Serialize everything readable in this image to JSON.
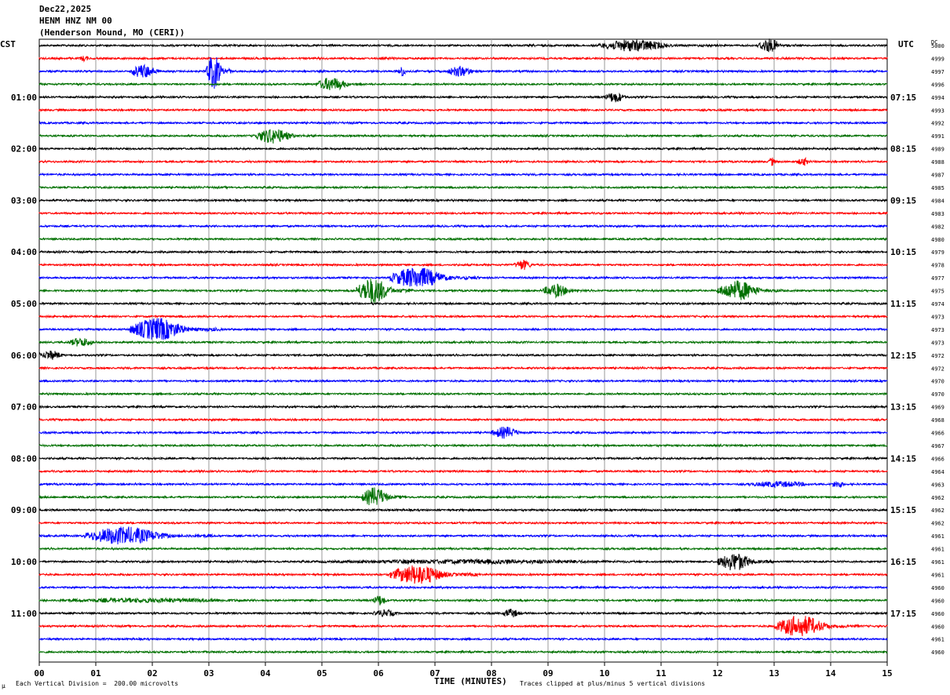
{
  "header": {
    "date": "Dec22,2025",
    "station": "HENM HNZ NM 00",
    "location": "(Henderson Mound, MO (CERI))"
  },
  "axes": {
    "left_label": "CST",
    "right_label": "UTC",
    "dc_label": "DC",
    "xlabel": "TIME (MINUTES)"
  },
  "footer": {
    "scale_note": "Each Vertical Division =  200.00 microvolts",
    "clip_note": "Traces clipped at plus/minus 5 vertical divisions",
    "corner_mark": "µ"
  },
  "chart_data": {
    "type": "line",
    "xlim": [
      0,
      15
    ],
    "x_tick_labels": [
      "00",
      "01",
      "02",
      "03",
      "04",
      "05",
      "06",
      "07",
      "08",
      "09",
      "10",
      "11",
      "12",
      "13",
      "14",
      "15"
    ],
    "trace_count": 48,
    "trace_colors": [
      "#000000",
      "#ff0000",
      "#0000ff",
      "#007000"
    ],
    "left_hour_labels": [
      "01:00",
      "02:00",
      "03:00",
      "04:00",
      "05:00",
      "06:00",
      "07:00",
      "08:00",
      "09:00",
      "10:00",
      "11:00"
    ],
    "right_hour_labels": [
      "07:15",
      "08:15",
      "09:15",
      "10:15",
      "11:15",
      "12:15",
      "13:15",
      "14:15",
      "15:15",
      "16:15",
      "17:15"
    ],
    "dc_values": [
      "5000",
      "4999",
      "4997",
      "4996",
      "4994",
      "4993",
      "4992",
      "4991",
      "4989",
      "4988",
      "4987",
      "4985",
      "4984",
      "4983",
      "4982",
      "4980",
      "4979",
      "4978",
      "4977",
      "4975",
      "4974",
      "4973",
      "4973",
      "4973",
      "4972",
      "4972",
      "4970",
      "4970",
      "4969",
      "4968",
      "4966",
      "4967",
      "4966",
      "4964",
      "4963",
      "4962",
      "4962",
      "4962",
      "4961",
      "4961",
      "4961",
      "4961",
      "4960",
      "4960",
      "4960",
      "4960",
      "4961",
      "4960"
    ],
    "events": [
      {
        "trace": 0,
        "start": 9.9,
        "end": 11.9,
        "amp": 8
      },
      {
        "trace": 0,
        "start": 12.7,
        "end": 13.4,
        "amp": 9
      },
      {
        "trace": 1,
        "start": 0.7,
        "end": 1.0,
        "amp": 4
      },
      {
        "trace": 2,
        "start": 1.6,
        "end": 2.4,
        "amp": 9
      },
      {
        "trace": 2,
        "start": 2.95,
        "end": 3.4,
        "amp": 23
      },
      {
        "trace": 2,
        "start": 6.35,
        "end": 6.6,
        "amp": 7
      },
      {
        "trace": 2,
        "start": 7.2,
        "end": 8.0,
        "amp": 7
      },
      {
        "trace": 3,
        "start": 4.9,
        "end": 5.8,
        "amp": 9
      },
      {
        "trace": 4,
        "start": 10.0,
        "end": 10.6,
        "amp": 7
      },
      {
        "trace": 7,
        "start": 3.8,
        "end": 4.9,
        "amp": 10
      },
      {
        "trace": 9,
        "start": 12.9,
        "end": 13.1,
        "amp": 6
      },
      {
        "trace": 9,
        "start": 13.4,
        "end": 13.8,
        "amp": 5
      },
      {
        "trace": 17,
        "start": 8.4,
        "end": 8.9,
        "amp": 7
      },
      {
        "trace": 18,
        "start": 6.2,
        "end": 7.8,
        "amp": 14
      },
      {
        "trace": 19,
        "start": 5.6,
        "end": 6.6,
        "amp": 17
      },
      {
        "trace": 19,
        "start": 8.9,
        "end": 9.7,
        "amp": 9
      },
      {
        "trace": 19,
        "start": 12.0,
        "end": 13.2,
        "amp": 13
      },
      {
        "trace": 22,
        "start": 1.6,
        "end": 3.2,
        "amp": 15
      },
      {
        "trace": 23,
        "start": 0.5,
        "end": 1.3,
        "amp": 6
      },
      {
        "trace": 24,
        "start": 0.0,
        "end": 0.7,
        "amp": 6
      },
      {
        "trace": 30,
        "start": 8.0,
        "end": 8.8,
        "amp": 8
      },
      {
        "trace": 34,
        "start": 12.5,
        "end": 14.5,
        "amp": 4
      },
      {
        "trace": 34,
        "start": 14.0,
        "end": 14.4,
        "amp": 5
      },
      {
        "trace": 35,
        "start": 5.7,
        "end": 6.5,
        "amp": 13
      },
      {
        "trace": 38,
        "start": 0.8,
        "end": 3.1,
        "amp": 12
      },
      {
        "trace": 40,
        "start": 12.0,
        "end": 13.0,
        "amp": 12
      },
      {
        "trace": 40,
        "start": 4.5,
        "end": 15.0,
        "amp": 3
      },
      {
        "trace": 41,
        "start": 6.2,
        "end": 7.8,
        "amp": 13
      },
      {
        "trace": 43,
        "start": 0.0,
        "end": 6.5,
        "amp": 3
      },
      {
        "trace": 43,
        "start": 5.9,
        "end": 6.3,
        "amp": 7
      },
      {
        "trace": 44,
        "start": 5.9,
        "end": 6.6,
        "amp": 5
      },
      {
        "trace": 44,
        "start": 8.2,
        "end": 8.7,
        "amp": 6
      },
      {
        "trace": 45,
        "start": 13.0,
        "end": 14.5,
        "amp": 14
      }
    ]
  }
}
